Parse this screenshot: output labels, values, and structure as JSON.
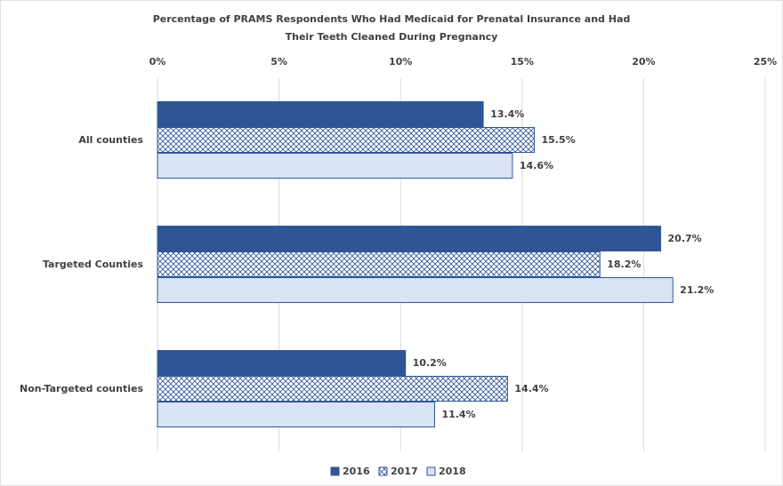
{
  "chart_data": {
    "type": "hbar",
    "title": [
      "Percentage of PRAMS Respondents Who Had Medicaid for Prenatal Insurance and Had",
      "Their Teeth Cleaned During Pregnancy"
    ],
    "categories": [
      "All counties",
      "Targeted Counties",
      "Non-Targeted counties"
    ],
    "series": [
      {
        "name": "2016",
        "color": "#2f5597",
        "pattern": "solid",
        "values": [
          13.4,
          20.7,
          10.2
        ],
        "value_labels": [
          "13.4%",
          "20.7%",
          "10.2%"
        ]
      },
      {
        "name": "2017",
        "color": "#2f5597",
        "pattern": "crosshatch",
        "values": [
          15.5,
          18.2,
          14.4
        ],
        "value_labels": [
          "15.5%",
          "18.2%",
          "14.4%"
        ]
      },
      {
        "name": "2018",
        "color": "#dae3f3",
        "pattern": "solid",
        "values": [
          14.6,
          21.2,
          11.4
        ],
        "value_labels": [
          "14.6%",
          "21.2%",
          "11.4%"
        ]
      }
    ],
    "xlim": [
      0,
      25
    ],
    "xticks": [
      {
        "value": 0,
        "label": "0%"
      },
      {
        "value": 5,
        "label": "5%"
      },
      {
        "value": 10,
        "label": "10%"
      },
      {
        "value": 15,
        "label": "15%"
      },
      {
        "value": 20,
        "label": "20%"
      },
      {
        "value": 25,
        "label": "25%"
      }
    ],
    "grid": true,
    "legend": "bottom"
  }
}
